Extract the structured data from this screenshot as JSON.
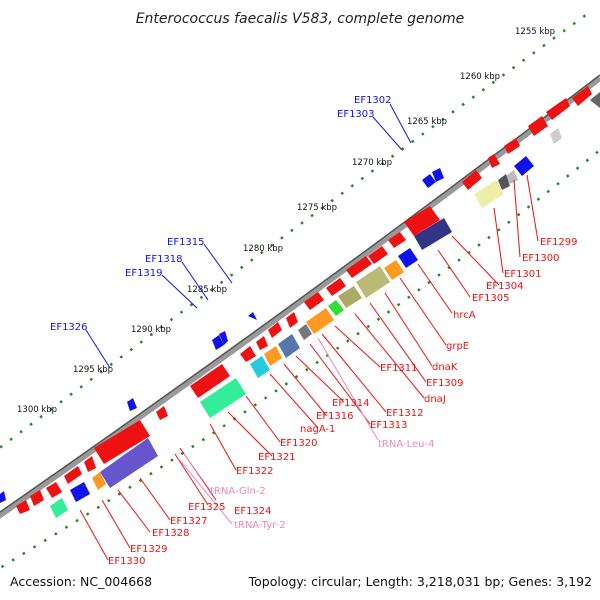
{
  "title": "Enterococcus faecalis V583, complete genome",
  "footer": {
    "accession": "Accession: NC_004668",
    "summary": "Topology: circular; Length: 3,218,031 bp; Genes: 3,192"
  },
  "colors": {
    "cds": "#ee1111",
    "blue_gene": "#1111ee",
    "trna": "#ee88bb",
    "backbone": "#888888",
    "tick": "#228822"
  },
  "ticks": [
    "1255 kbp",
    "1260 kbp",
    "1265 kbp",
    "1270 kbp",
    "1275 kbp",
    "1280 kbp",
    "1285 kbp",
    "1290 kbp",
    "1295 kbp",
    "1300 kbp"
  ],
  "outer_labels": [
    "EF1302",
    "EF1303",
    "EF1315",
    "EF1318",
    "EF1319",
    "EF1326"
  ],
  "inner_labels": [
    "EF1299",
    "EF1300",
    "EF1301",
    "EF1304",
    "EF1305",
    "hrcA",
    "grpE",
    "dnaK",
    "EF1309",
    "dnaJ",
    "EF1311",
    "EF1312",
    "EF1313",
    "EF1314",
    "EF1316",
    "nagA-1",
    "tRNA-Leu-4",
    "EF1320",
    "EF1321",
    "EF1322",
    "tRNA-Gln-2",
    "EF1324",
    "tRNA-Tyr-2",
    "EF1325",
    "EF1327",
    "EF1328",
    "EF1329",
    "EF1330"
  ]
}
